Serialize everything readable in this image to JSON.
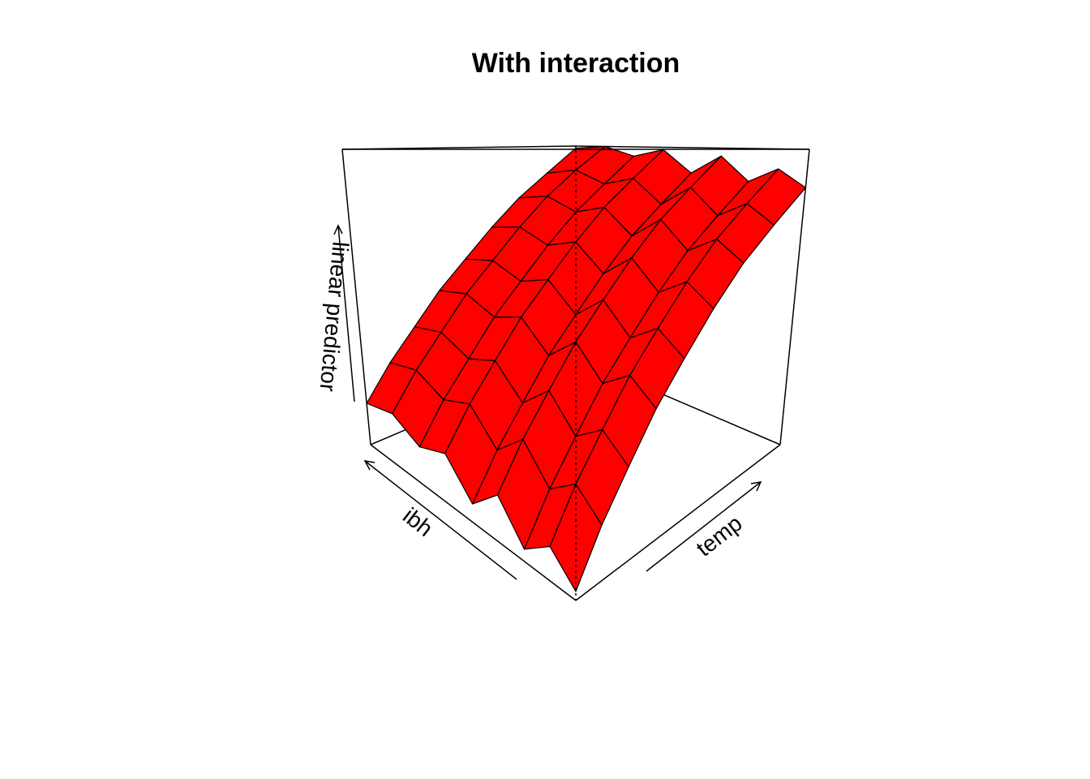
{
  "chart_data": {
    "type": "surface",
    "title": "With interaction",
    "xlabel": "temp",
    "ylabel": "ibh",
    "zlabel": "linear predictor",
    "color": "#ff0000",
    "zlim": [
      0,
      1
    ],
    "z": [
      [
        0.02,
        0.13,
        0.23,
        0.34,
        0.44,
        0.55,
        0.66,
        0.76,
        0.87
      ],
      [
        0.08,
        0.19,
        0.29,
        0.4,
        0.5,
        0.61,
        0.72,
        0.82,
        0.93
      ],
      [
        0.03,
        0.14,
        0.24,
        0.35,
        0.45,
        0.56,
        0.67,
        0.77,
        0.88
      ],
      [
        0.12,
        0.23,
        0.33,
        0.44,
        0.54,
        0.65,
        0.76,
        0.86,
        0.97
      ],
      [
        0.05,
        0.16,
        0.26,
        0.37,
        0.47,
        0.58,
        0.69,
        0.79,
        0.9
      ],
      [
        0.14,
        0.25,
        0.35,
        0.46,
        0.56,
        0.67,
        0.78,
        0.88,
        0.99
      ],
      [
        0.11,
        0.22,
        0.32,
        0.43,
        0.53,
        0.64,
        0.75,
        0.85,
        0.96
      ],
      [
        0.16,
        0.27,
        0.37,
        0.48,
        0.58,
        0.69,
        0.8,
        0.9,
        1.0
      ],
      [
        0.14,
        0.25,
        0.35,
        0.46,
        0.56,
        0.67,
        0.78,
        0.88,
        0.99
      ]
    ]
  }
}
